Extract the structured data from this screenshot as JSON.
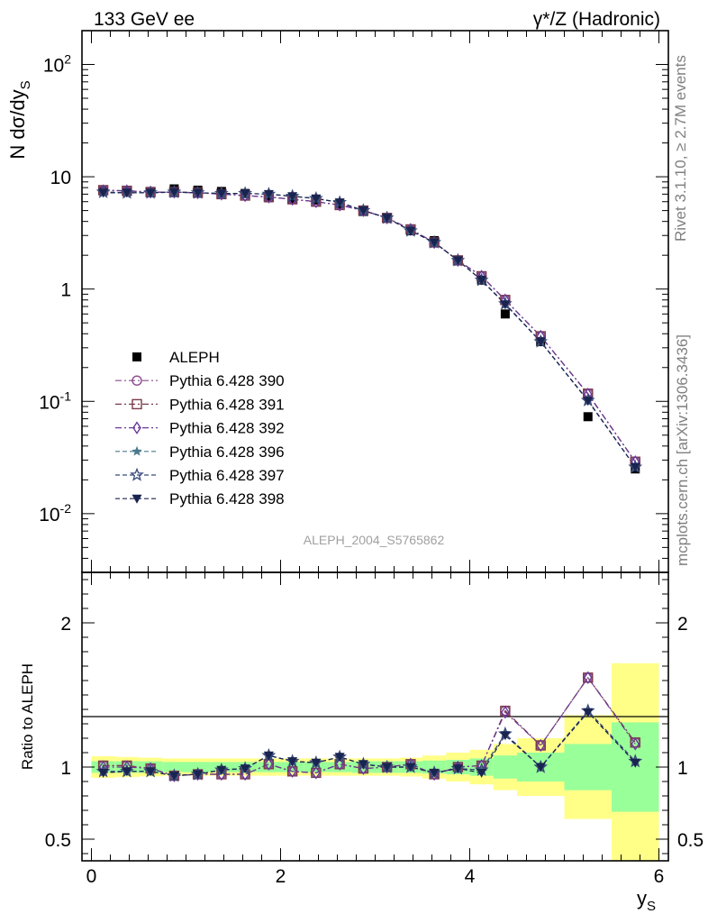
{
  "header": {
    "left_title": "133 GeV ee",
    "right_title": "γ*/Z (Hadronic)"
  },
  "side_labels": {
    "rivet": "Rivet 3.1.10, ≥ 2.7M events",
    "mcplots": "mcplots.cern.ch [arXiv:1306.3436]"
  },
  "analysis_label": "ALEPH_2004_S5765862",
  "chart_data": [
    {
      "type": "scatter",
      "panel": "main",
      "ylabel": "N dσ/dy_S",
      "yscale": "log",
      "ylim": [
        0.003,
        200
      ],
      "xlim": [
        -0.1,
        6.1
      ],
      "legend_placement": "lower-left",
      "y_tick_labels": [
        "10^-2",
        "10^-1",
        "1",
        "10",
        "10^2"
      ],
      "x": [
        0.125,
        0.375,
        0.625,
        0.875,
        1.125,
        1.375,
        1.625,
        1.875,
        2.125,
        2.375,
        2.625,
        2.875,
        3.125,
        3.375,
        3.625,
        3.875,
        4.125,
        4.375,
        4.75,
        5.25,
        5.75
      ],
      "series": [
        {
          "name": "ALEPH",
          "color": "#000000",
          "marker": "square_filled",
          "line": "none",
          "values": [
            7.5,
            7.4,
            7.4,
            7.8,
            7.6,
            7.4,
            7.1,
            6.5,
            6.3,
            6.2,
            5.7,
            4.9,
            4.3,
            3.3,
            2.7,
            1.8,
            1.2,
            0.6,
            0.34,
            0.073,
            0.025
          ]
        },
        {
          "name": "Pythia 6.428 390",
          "color": "#8a4a8a",
          "marker": "circle_open",
          "line": "dash",
          "values": [
            7.6,
            7.5,
            7.3,
            7.3,
            7.2,
            7.0,
            6.8,
            6.6,
            6.3,
            6.0,
            5.6,
            5.0,
            4.3,
            3.4,
            2.6,
            1.8,
            1.3,
            0.8,
            0.38,
            0.117,
            0.029
          ]
        },
        {
          "name": "Pythia 6.428 391",
          "color": "#7a3a4a",
          "marker": "square_open",
          "line": "dash",
          "values": [
            7.6,
            7.5,
            7.3,
            7.3,
            7.2,
            7.0,
            6.8,
            6.6,
            6.3,
            6.0,
            5.6,
            5.0,
            4.3,
            3.4,
            2.6,
            1.8,
            1.3,
            0.8,
            0.38,
            0.117,
            0.029
          ]
        },
        {
          "name": "Pythia 6.428 392",
          "color": "#6a3a9a",
          "marker": "diamond_open",
          "line": "dash",
          "values": [
            7.5,
            7.5,
            7.3,
            7.3,
            7.2,
            7.0,
            6.8,
            6.6,
            6.3,
            6.0,
            5.6,
            5.0,
            4.3,
            3.4,
            2.6,
            1.8,
            1.3,
            0.8,
            0.38,
            0.116,
            0.029
          ]
        },
        {
          "name": "Pythia 6.428 396",
          "color": "#4a7a8a",
          "marker": "star_filled",
          "line": "dash",
          "values": [
            7.3,
            7.2,
            7.2,
            7.3,
            7.2,
            7.1,
            7.1,
            7.0,
            6.7,
            6.4,
            5.9,
            5.0,
            4.3,
            3.3,
            2.6,
            1.8,
            1.2,
            0.74,
            0.34,
            0.102,
            0.026
          ]
        },
        {
          "name": "Pythia 6.428 397",
          "color": "#3a4a7a",
          "marker": "star_open",
          "line": "dash",
          "values": [
            7.3,
            7.2,
            7.2,
            7.3,
            7.2,
            7.1,
            7.1,
            7.0,
            6.7,
            6.4,
            5.9,
            5.0,
            4.3,
            3.3,
            2.6,
            1.8,
            1.2,
            0.74,
            0.34,
            0.102,
            0.026
          ]
        },
        {
          "name": "Pythia 6.428 398",
          "color": "#1a2450",
          "marker": "triangle_down_filled",
          "line": "dash",
          "values": [
            7.2,
            7.2,
            7.2,
            7.3,
            7.2,
            7.1,
            7.1,
            7.0,
            6.7,
            6.4,
            5.9,
            5.0,
            4.3,
            3.3,
            2.6,
            1.8,
            1.2,
            0.73,
            0.34,
            0.101,
            0.026
          ]
        }
      ]
    },
    {
      "type": "scatter",
      "panel": "ratio",
      "ylabel": "Ratio to ALEPH",
      "xlabel": "y_S",
      "ylim": [
        0.35,
        2.35
      ],
      "xlim": [
        -0.1,
        6.1
      ],
      "x_ticks": [
        0,
        2,
        4,
        6
      ],
      "y_ticks": [
        0.5,
        1,
        2
      ],
      "x": [
        0.125,
        0.375,
        0.625,
        0.875,
        1.125,
        1.375,
        1.625,
        1.875,
        2.125,
        2.375,
        2.625,
        2.875,
        3.125,
        3.375,
        3.625,
        3.875,
        4.125,
        4.375,
        4.75,
        5.25,
        5.75
      ],
      "bin_edges": [
        0,
        0.25,
        0.5,
        0.75,
        1.0,
        1.25,
        1.5,
        1.75,
        2.0,
        2.25,
        2.5,
        2.75,
        3.0,
        3.25,
        3.5,
        3.75,
        4.0,
        4.25,
        4.5,
        5.0,
        5.5,
        6.0
      ],
      "band_stat": [
        0.04,
        0.04,
        0.04,
        0.035,
        0.035,
        0.035,
        0.035,
        0.035,
        0.035,
        0.035,
        0.035,
        0.04,
        0.04,
        0.04,
        0.045,
        0.05,
        0.06,
        0.08,
        0.1,
        0.16,
        0.31
      ],
      "band_total": [
        0.075,
        0.07,
        0.065,
        0.06,
        0.06,
        0.06,
        0.06,
        0.06,
        0.06,
        0.06,
        0.06,
        0.06,
        0.06,
        0.065,
        0.08,
        0.1,
        0.12,
        0.16,
        0.2,
        0.36,
        0.72
      ],
      "band_colors": {
        "total": "#ffff88",
        "stat": "#99ff99"
      },
      "series": [
        {
          "name": "Pythia 6.428 390",
          "color": "#8a4a8a",
          "marker": "circle_open",
          "values": [
            1.01,
            1.01,
            0.99,
            0.94,
            0.95,
            0.95,
            0.95,
            1.02,
            0.97,
            0.96,
            1.02,
            0.99,
            1.0,
            1.02,
            0.95,
            1.0,
            1.01,
            1.39,
            1.15,
            1.62,
            1.17
          ]
        },
        {
          "name": "Pythia 6.428 391",
          "color": "#7a3a4a",
          "marker": "square_open",
          "values": [
            1.01,
            1.01,
            0.99,
            0.94,
            0.95,
            0.95,
            0.95,
            1.02,
            0.97,
            0.96,
            1.02,
            0.99,
            1.0,
            1.02,
            0.95,
            1.0,
            1.01,
            1.39,
            1.15,
            1.62,
            1.17
          ]
        },
        {
          "name": "Pythia 6.428 392",
          "color": "#6a3a9a",
          "marker": "diamond_open",
          "values": [
            1.0,
            1.0,
            0.99,
            0.94,
            0.95,
            0.95,
            0.95,
            1.02,
            0.97,
            0.96,
            1.02,
            0.99,
            1.0,
            1.02,
            0.95,
            1.0,
            1.01,
            1.38,
            1.15,
            1.62,
            1.16
          ]
        },
        {
          "name": "Pythia 6.428 396",
          "color": "#4a7a8a",
          "marker": "star_filled",
          "values": [
            0.97,
            0.97,
            0.97,
            0.94,
            0.95,
            0.98,
            0.99,
            1.08,
            1.04,
            1.03,
            1.07,
            1.02,
            1.0,
            1.0,
            0.96,
            0.99,
            0.98,
            1.23,
            1.0,
            1.39,
            1.04
          ]
        },
        {
          "name": "Pythia 6.428 397",
          "color": "#3a4a7a",
          "marker": "star_open",
          "values": [
            0.97,
            0.97,
            0.97,
            0.94,
            0.95,
            0.98,
            0.99,
            1.08,
            1.04,
            1.03,
            1.07,
            1.02,
            1.0,
            1.0,
            0.96,
            0.99,
            0.98,
            1.23,
            1.0,
            1.39,
            1.04
          ]
        },
        {
          "name": "Pythia 6.428 398",
          "color": "#1a2450",
          "marker": "triangle_down_filled",
          "values": [
            0.96,
            0.97,
            0.97,
            0.94,
            0.95,
            0.98,
            0.99,
            1.08,
            1.04,
            1.03,
            1.07,
            1.02,
            1.0,
            1.0,
            0.96,
            0.99,
            0.96,
            1.22,
            1.0,
            1.38,
            1.03
          ]
        }
      ]
    }
  ]
}
